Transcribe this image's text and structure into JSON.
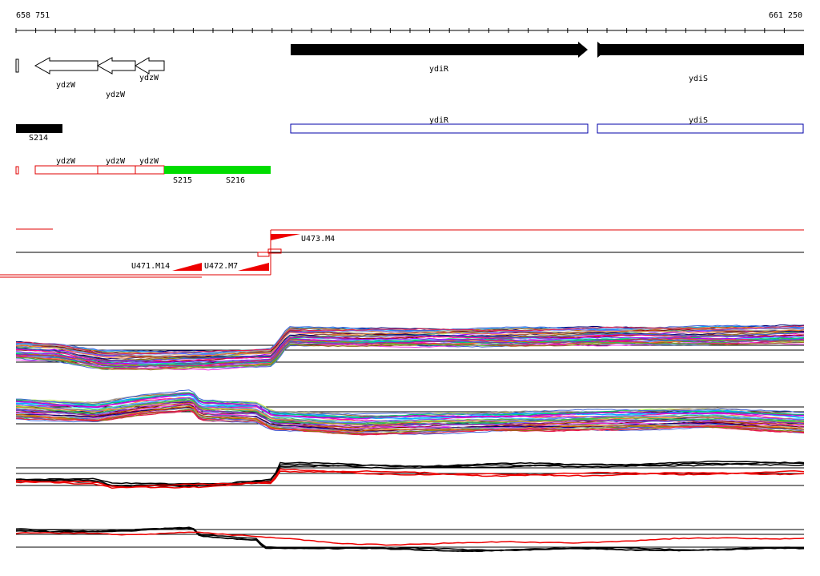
{
  "ruler": {
    "start_label": "658 751",
    "end_label": "661 250"
  },
  "genes": {
    "ydzW_a": "ydzW",
    "ydzW_b": "ydzW",
    "ydzW_c": "ydzW",
    "ydiR": "ydiR",
    "ydiS": "ydiS"
  },
  "annotation_row": {
    "ydiR": "ydiR",
    "ydiS": "ydiS"
  },
  "segments": {
    "s214": "S214",
    "s215": "S215",
    "s216": "S216"
  },
  "red_row": {
    "ydzW_a": "ydzW",
    "ydzW_b": "ydzW",
    "ydzW_c": "ydzW"
  },
  "transcripts": {
    "u471": "U471.M14",
    "u472": "U472.M7",
    "u473": "U473.M4"
  },
  "colors": {
    "gene_arrow": "#000000",
    "cds_outline": "#0000aa",
    "segment_green": "#00dd00",
    "segment_black": "#000000",
    "transcript_red": "#ee0000"
  }
}
